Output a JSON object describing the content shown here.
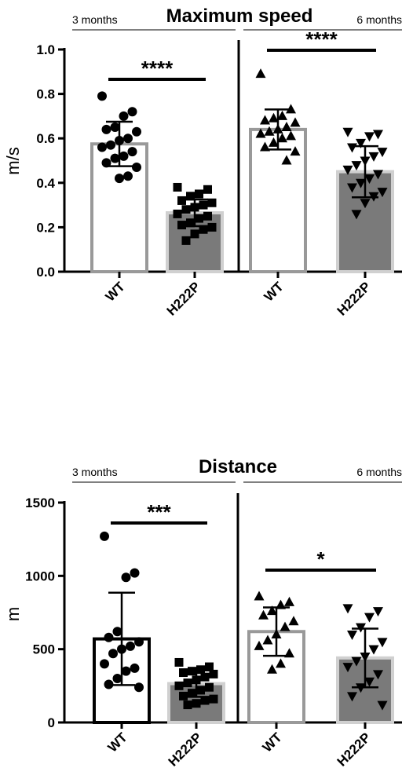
{
  "chart_data": [
    {
      "type": "bar",
      "title": "Maximum speed",
      "ylabel": "m/s",
      "ylim": [
        0,
        1.0
      ],
      "yticks": [
        "0.0",
        "0.2",
        "0.4",
        "0.6",
        "0.8",
        "1.0"
      ],
      "ytick_values": [
        0,
        0.2,
        0.4,
        0.6,
        0.8,
        1.0
      ],
      "periods": [
        {
          "label": "3 months",
          "categories": [
            "WT",
            "H222P"
          ],
          "bars": [
            {
              "category": "WT",
              "mean": 0.575,
              "sd": 0.1,
              "marker": "circle",
              "fill": "#ffffff",
              "edge": "#999999",
              "points": [
                0.79,
                0.72,
                0.7,
                0.65,
                0.64,
                0.63,
                0.6,
                0.59,
                0.57,
                0.56,
                0.54,
                0.52,
                0.51,
                0.49,
                0.47,
                0.43,
                0.42
              ]
            },
            {
              "category": "H222P",
              "mean": 0.265,
              "sd": 0.06,
              "marker": "square",
              "fill": "#7a7a7a",
              "edge": "#d0d0d0",
              "points": [
                0.38,
                0.37,
                0.35,
                0.34,
                0.32,
                0.31,
                0.3,
                0.29,
                0.28,
                0.26,
                0.25,
                0.24,
                0.22,
                0.21,
                0.2,
                0.19,
                0.17,
                0.14
              ]
            }
          ],
          "significance": "****"
        },
        {
          "label": "6 months",
          "categories": [
            "WT",
            "H222P"
          ],
          "bars": [
            {
              "category": "WT",
              "mean": 0.64,
              "sd": 0.09,
              "marker": "triangle-up",
              "fill": "#ffffff",
              "edge": "#999999",
              "points": [
                0.89,
                0.73,
                0.7,
                0.69,
                0.68,
                0.67,
                0.65,
                0.64,
                0.63,
                0.62,
                0.61,
                0.6,
                0.58,
                0.56,
                0.54,
                0.5
              ]
            },
            {
              "category": "H222P",
              "mean": 0.45,
              "sd": 0.115,
              "marker": "triangle-down",
              "fill": "#7a7a7a",
              "edge": "#d0d0d0",
              "points": [
                0.63,
                0.62,
                0.61,
                0.58,
                0.56,
                0.54,
                0.52,
                0.5,
                0.48,
                0.46,
                0.44,
                0.42,
                0.4,
                0.38,
                0.36,
                0.34,
                0.31,
                0.26
              ]
            }
          ],
          "significance": "****"
        }
      ]
    },
    {
      "type": "bar",
      "title": "Distance",
      "ylabel": "m",
      "ylim": [
        0,
        1500
      ],
      "yticks": [
        "0",
        "500",
        "1000",
        "1500"
      ],
      "ytick_values": [
        0,
        500,
        1000,
        1500
      ],
      "periods": [
        {
          "label": "3 months",
          "categories": [
            "WT",
            "H222P"
          ],
          "bars": [
            {
              "category": "WT",
              "mean": 570,
              "sd": 315,
              "marker": "circle",
              "fill": "#ffffff",
              "edge": "#000000",
              "points": [
                1270,
                1020,
                990,
                620,
                580,
                550,
                520,
                500,
                470,
                400,
                370,
                350,
                300,
                260,
                240
              ]
            },
            {
              "category": "H222P",
              "mean": 265,
              "sd": 90,
              "marker": "square",
              "fill": "#7a7a7a",
              "edge": "#d0d0d0",
              "points": [
                410,
                380,
                360,
                350,
                340,
                330,
                310,
                290,
                270,
                250,
                240,
                220,
                200,
                180,
                160,
                150,
                130,
                120
              ]
            }
          ],
          "significance": "***"
        },
        {
          "label": "6 months",
          "categories": [
            "WT",
            "H222P"
          ],
          "bars": [
            {
              "category": "WT",
              "mean": 620,
              "sd": 165,
              "marker": "triangle-up",
              "fill": "#ffffff",
              "edge": "#999999",
              "points": [
                860,
                820,
                800,
                760,
                730,
                690,
                650,
                600,
                560,
                520,
                470,
                400,
                360
              ]
            },
            {
              "category": "H222P",
              "mean": 440,
              "sd": 200,
              "marker": "triangle-down",
              "fill": "#7a7a7a",
              "edge": "#d0d0d0",
              "points": [
                780,
                760,
                720,
                650,
                600,
                550,
                500,
                450,
                420,
                380,
                330,
                280,
                240,
                180,
                120
              ]
            }
          ],
          "significance": "*"
        }
      ]
    }
  ]
}
